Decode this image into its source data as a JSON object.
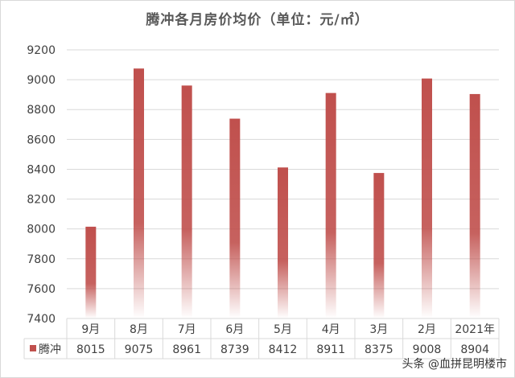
{
  "chart_data": {
    "type": "bar",
    "title": "腾冲各月房价均价（单位：元/㎡）",
    "categories": [
      "9月",
      "8月",
      "7月",
      "6月",
      "5月",
      "4月",
      "3月",
      "2月",
      "2021年"
    ],
    "series": [
      {
        "name": "腾冲",
        "values": [
          8015,
          9075,
          8961,
          8739,
          8412,
          8911,
          8375,
          9008,
          8904
        ]
      }
    ],
    "ylim": [
      7400,
      9200
    ],
    "yticks": [
      7400,
      7600,
      7800,
      8000,
      8200,
      8400,
      8600,
      8800,
      9000,
      9200
    ],
    "grid": true,
    "legend": "data-table",
    "data_table": true,
    "colors": {
      "bar": "#c0504d",
      "grid": "#d9d9d9",
      "text": "#404040"
    }
  },
  "watermark": "头条 @血拼昆明楼市"
}
